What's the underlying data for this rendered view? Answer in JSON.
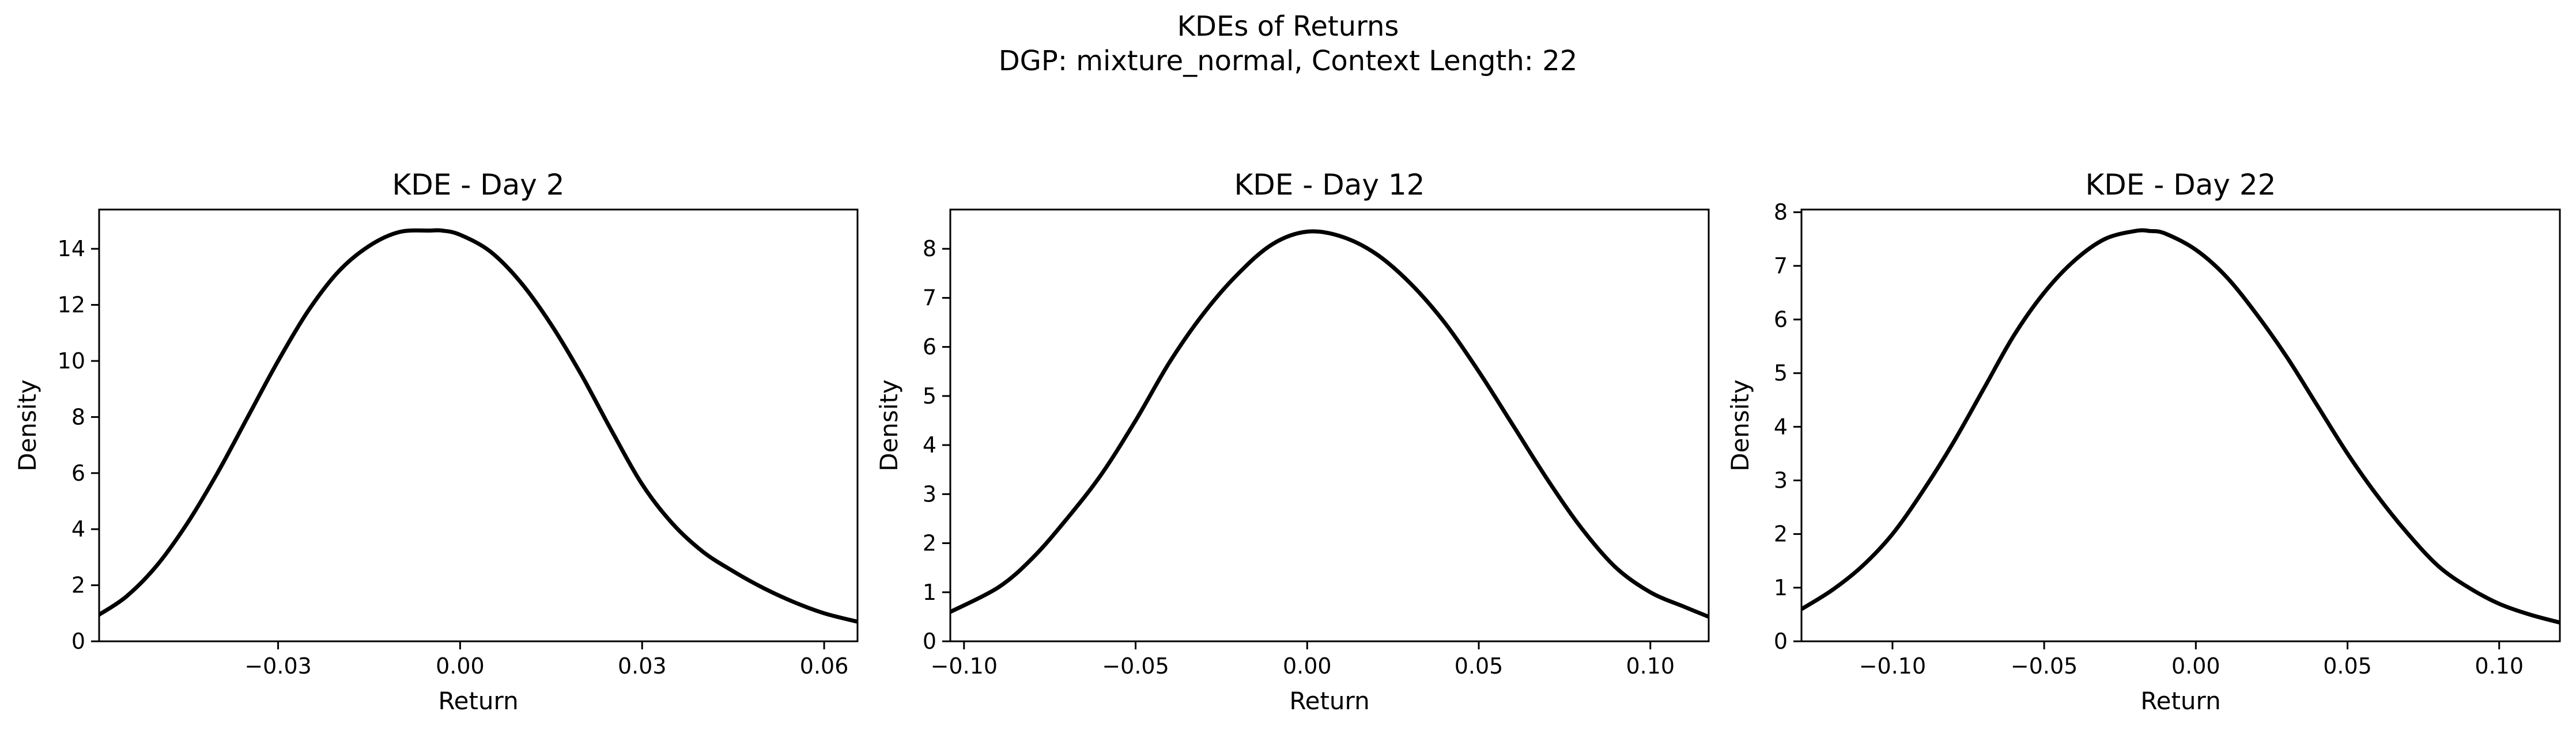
{
  "figure": {
    "title_line1": "KDEs of Returns",
    "title_line2": "DGP: mixture_normal, Context Length: 22"
  },
  "chart_data": [
    {
      "type": "line",
      "title": "KDE - Day 2",
      "xlabel": "Return",
      "ylabel": "Density",
      "xlim": [
        -0.0595,
        0.0655
      ],
      "ylim": [
        0,
        15.4
      ],
      "xticks": [
        -0.03,
        0.0,
        0.03,
        0.06
      ],
      "xtick_labels": [
        "−0.03",
        "0.00",
        "0.03",
        "0.06"
      ],
      "yticks": [
        0,
        2,
        4,
        6,
        8,
        10,
        12,
        14
      ],
      "ytick_labels": [
        "0",
        "2",
        "4",
        "6",
        "8",
        "10",
        "12",
        "14"
      ],
      "grid": false,
      "series": [
        {
          "color": "#000000",
          "x": [
            -0.0595,
            -0.055,
            -0.05,
            -0.045,
            -0.04,
            -0.035,
            -0.03,
            -0.025,
            -0.02,
            -0.015,
            -0.01,
            -0.005,
            -0.003,
            0.0,
            0.005,
            0.01,
            0.015,
            0.02,
            0.025,
            0.03,
            0.035,
            0.04,
            0.045,
            0.05,
            0.055,
            0.06,
            0.0655
          ],
          "y": [
            0.95,
            1.6,
            2.7,
            4.2,
            6.0,
            8.0,
            10.0,
            11.8,
            13.2,
            14.1,
            14.6,
            14.65,
            14.65,
            14.5,
            13.9,
            12.8,
            11.3,
            9.5,
            7.5,
            5.6,
            4.2,
            3.2,
            2.5,
            1.9,
            1.4,
            1.0,
            0.7
          ]
        }
      ]
    },
    {
      "type": "line",
      "title": "KDE - Day 12",
      "xlabel": "Return",
      "ylabel": "Density",
      "xlim": [
        -0.104,
        0.117
      ],
      "ylim": [
        0,
        8.8
      ],
      "xticks": [
        -0.1,
        -0.05,
        0.0,
        0.05,
        0.1
      ],
      "xtick_labels": [
        "−0.10",
        "−0.05",
        "0.00",
        "0.05",
        "0.10"
      ],
      "yticks": [
        0,
        1,
        2,
        3,
        4,
        5,
        6,
        7,
        8
      ],
      "ytick_labels": [
        "0",
        "1",
        "2",
        "3",
        "4",
        "5",
        "6",
        "7",
        "8"
      ],
      "grid": false,
      "series": [
        {
          "color": "#000000",
          "x": [
            -0.104,
            -0.09,
            -0.08,
            -0.07,
            -0.06,
            -0.05,
            -0.04,
            -0.03,
            -0.02,
            -0.01,
            0.0,
            0.01,
            0.02,
            0.03,
            0.04,
            0.05,
            0.06,
            0.07,
            0.08,
            0.09,
            0.1,
            0.11,
            0.117
          ],
          "y": [
            0.6,
            1.1,
            1.7,
            2.5,
            3.4,
            4.5,
            5.7,
            6.7,
            7.5,
            8.1,
            8.35,
            8.25,
            7.9,
            7.3,
            6.5,
            5.5,
            4.4,
            3.3,
            2.3,
            1.5,
            1.0,
            0.7,
            0.5
          ]
        }
      ]
    },
    {
      "type": "line",
      "title": "KDE - Day 22",
      "xlabel": "Return",
      "ylabel": "Density",
      "xlim": [
        -0.13,
        0.12
      ],
      "ylim": [
        0,
        8.05
      ],
      "xticks": [
        -0.1,
        -0.05,
        0.0,
        0.05,
        0.1
      ],
      "xtick_labels": [
        "−0.10",
        "−0.05",
        "0.00",
        "0.05",
        "0.10"
      ],
      "yticks": [
        0,
        1,
        2,
        3,
        4,
        5,
        6,
        7,
        8
      ],
      "ytick_labels": [
        "0",
        "1",
        "2",
        "3",
        "4",
        "5",
        "6",
        "7",
        "8"
      ],
      "grid": false,
      "series": [
        {
          "color": "#000000",
          "x": [
            -0.13,
            -0.12,
            -0.11,
            -0.1,
            -0.09,
            -0.08,
            -0.07,
            -0.06,
            -0.05,
            -0.04,
            -0.03,
            -0.02,
            -0.015,
            -0.01,
            0.0,
            0.01,
            0.02,
            0.03,
            0.04,
            0.05,
            0.06,
            0.07,
            0.08,
            0.09,
            0.1,
            0.11,
            0.12
          ],
          "y": [
            0.6,
            0.95,
            1.4,
            2.0,
            2.8,
            3.7,
            4.7,
            5.7,
            6.5,
            7.1,
            7.5,
            7.65,
            7.65,
            7.6,
            7.3,
            6.8,
            6.1,
            5.3,
            4.4,
            3.5,
            2.7,
            2.0,
            1.4,
            1.0,
            0.7,
            0.5,
            0.35
          ]
        }
      ]
    }
  ]
}
